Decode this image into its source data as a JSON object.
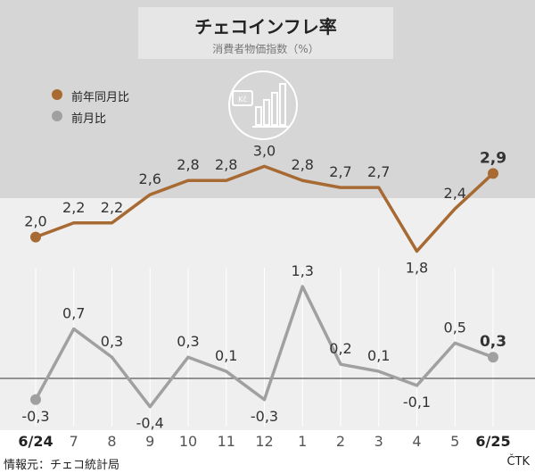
{
  "header": {
    "title": "チェコインフレ率",
    "subtitle": "消費者物価指数（%）"
  },
  "legend": [
    {
      "label": "前年同月比",
      "color": "#a86a33"
    },
    {
      "label": "前月比",
      "color": "#a0a0a0"
    }
  ],
  "footer": {
    "source": "情報元：チェコ統計局",
    "agency": "ČTK"
  },
  "icon": {
    "name": "koruna-chart-icon",
    "text": "Kč"
  },
  "chart_data": {
    "type": "line",
    "categories": [
      "6/24",
      "7",
      "8",
      "9",
      "10",
      "11",
      "12",
      "1",
      "2",
      "3",
      "4",
      "5",
      "6/25"
    ],
    "bold_categories": [
      "6/24",
      "6/25"
    ],
    "series": [
      {
        "name": "前年同月比",
        "color": "#a86a33",
        "values": [
          2.0,
          2.2,
          2.2,
          2.6,
          2.8,
          2.8,
          3.0,
          2.8,
          2.7,
          2.7,
          1.8,
          2.4,
          2.9
        ],
        "labels": [
          "2,0",
          "2,2",
          "2,2",
          "2,6",
          "2,8",
          "2,8",
          "3,0",
          "2,8",
          "2,7",
          "2,7",
          "1,8",
          "2,4",
          "2,9"
        ]
      },
      {
        "name": "前月比",
        "color": "#a0a0a0",
        "values": [
          -0.3,
          0.7,
          0.3,
          -0.4,
          0.3,
          0.1,
          -0.3,
          1.3,
          0.2,
          0.1,
          -0.1,
          0.5,
          0.3
        ],
        "labels": [
          "-0,3",
          "0,7",
          "0,3",
          "-0,4",
          "0,3",
          "0,1",
          "-0,3",
          "1,3",
          "0,2",
          "0,1",
          "-0,1",
          "0,5",
          "0,3"
        ]
      }
    ],
    "baseline": 0,
    "grid": "vertical"
  }
}
